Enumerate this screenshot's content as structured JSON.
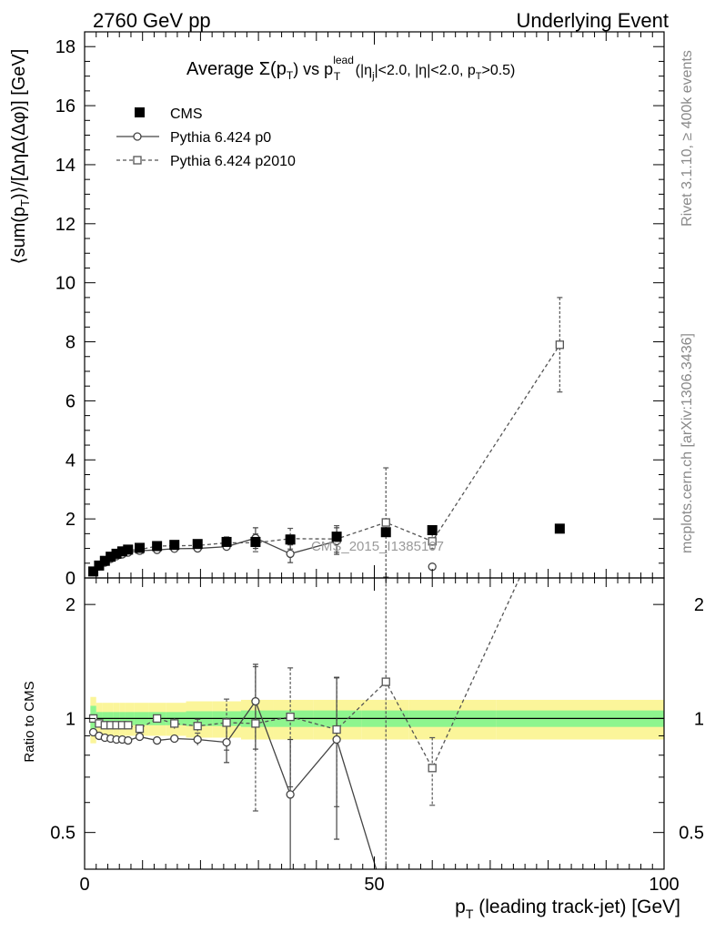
{
  "header": {
    "left": "2760 GeV pp",
    "right": "Underlying Event"
  },
  "side": {
    "rivet": "Rivet 3.1.10, ≥ 400k events",
    "mcplots": "mcplots.cern.ch [arXiv:1306.3436]"
  },
  "chart_data": {
    "type": "line",
    "title": "Average Σ(pT) vs pT lead (|ηj|<2.0, |η|<2.0, pT>0.5)",
    "title_parts": {
      "t1": "Average ",
      "sigma": "Σ(p",
      "sub_T1": "T",
      "t2": ") vs p",
      "sup_lead": "lead",
      "sub_T2": "T",
      "t3": " (|η",
      "sub_j": "j",
      "t4": "|<2.0, |η|<2.0, p",
      "sub_T3": "T",
      "t5": ">0.5)"
    },
    "ylabel_parts": {
      "a": "⟨sum(p",
      "sub": "T",
      "b": ")⟩/[ΔηΔ(Δφ)] [GeV]"
    },
    "xlabel_parts": {
      "a": "p",
      "sub": "T",
      "b": " (leading track-jet) [GeV]"
    },
    "ratio_ylabel": "Ratio to CMS",
    "watermark": "CMS_2015_I1385107",
    "xlim": [
      0,
      100
    ],
    "ylim": [
      0,
      18.5
    ],
    "ratio_ylim": [
      0.4,
      2.35
    ],
    "ratio_log": true,
    "x_ticks": [
      "0",
      "50",
      "100"
    ],
    "y_ticks": [
      "0",
      "2",
      "4",
      "6",
      "8",
      "10",
      "12",
      "14",
      "16",
      "18"
    ],
    "ratio_ticks": [
      "0.5",
      "1",
      "2"
    ],
    "x": [
      1.5,
      2.5,
      3.5,
      4.5,
      5.5,
      6.5,
      7.5,
      9.5,
      12.5,
      15.5,
      19.5,
      24.5,
      29.5,
      35.5,
      43.5,
      52,
      60,
      82
    ],
    "series": [
      {
        "name": "CMS",
        "style": "filled-square",
        "color": "#000000",
        "values": [
          0.22,
          0.42,
          0.58,
          0.72,
          0.82,
          0.9,
          0.96,
          1.02,
          1.08,
          1.12,
          1.15,
          1.22,
          1.22,
          1.3,
          1.4,
          1.55,
          1.62,
          1.67
        ]
      },
      {
        "name": "Pythia 6.424 p0",
        "style": "open-circle-solid",
        "color": "#444444",
        "values": [
          0.2,
          0.39,
          0.52,
          0.65,
          0.74,
          0.8,
          0.86,
          0.92,
          0.95,
          0.99,
          1.0,
          1.06,
          1.35,
          0.82,
          1.25,
          null,
          0.38,
          null
        ],
        "err": [
          0.01,
          0.01,
          0.01,
          0.01,
          0.01,
          0.01,
          0.02,
          0.02,
          0.03,
          0.04,
          0.05,
          0.1,
          0.35,
          0.3,
          0.45,
          null,
          0.06,
          null
        ]
      },
      {
        "name": "Pythia 6.424 p2010",
        "style": "open-square-dashed",
        "color": "#555555",
        "values": [
          0.22,
          0.41,
          0.56,
          0.7,
          0.8,
          0.88,
          0.94,
          0.96,
          1.08,
          1.09,
          1.1,
          1.19,
          1.19,
          1.33,
          1.32,
          1.88,
          1.24,
          7.9
        ],
        "err": [
          0.01,
          0.01,
          0.01,
          0.02,
          0.02,
          0.02,
          0.03,
          0.03,
          0.04,
          0.05,
          0.06,
          0.2,
          0.3,
          0.35,
          0.45,
          1.85,
          0.25,
          1.6
        ]
      }
    ],
    "ratios": {
      "p0": {
        "values": [
          0.92,
          0.9,
          0.89,
          0.885,
          0.88,
          0.88,
          0.875,
          0.895,
          0.875,
          0.885,
          0.88,
          0.865,
          1.11,
          0.63,
          0.88,
          0.33,
          null,
          null
        ],
        "err": [
          0.005,
          0.005,
          0.005,
          0.005,
          0.005,
          0.005,
          0.01,
          0.01,
          0.015,
          0.02,
          0.03,
          0.1,
          0.28,
          0.25,
          0.4,
          null,
          null,
          null
        ]
      },
      "p2010": {
        "values": [
          1.0,
          0.97,
          0.96,
          0.96,
          0.96,
          0.96,
          0.96,
          0.94,
          1.0,
          0.97,
          0.955,
          0.975,
          0.97,
          1.01,
          0.935,
          1.25,
          0.74,
          4.0
        ],
        "err": [
          0.005,
          0.005,
          0.005,
          0.01,
          0.01,
          0.01,
          0.02,
          0.02,
          0.02,
          0.03,
          0.04,
          0.15,
          0.4,
          0.35,
          0.35,
          2.0,
          0.15,
          0.0
        ]
      }
    },
    "band": {
      "inner": [
        0.08,
        0.04,
        0.04,
        0.04,
        0.04,
        0.04,
        0.04,
        0.04,
        0.04,
        0.04,
        0.045,
        0.045,
        0.05,
        0.05,
        0.05,
        0.05,
        0.05,
        0.05
      ],
      "outer": [
        0.14,
        0.1,
        0.1,
        0.1,
        0.1,
        0.1,
        0.1,
        0.1,
        0.1,
        0.1,
        0.11,
        0.11,
        0.12,
        0.12,
        0.12,
        0.12,
        0.12,
        0.12
      ],
      "inner_color": "#8ef58e",
      "outer_color": "#fbf59a"
    },
    "legend_position": "top-left"
  }
}
